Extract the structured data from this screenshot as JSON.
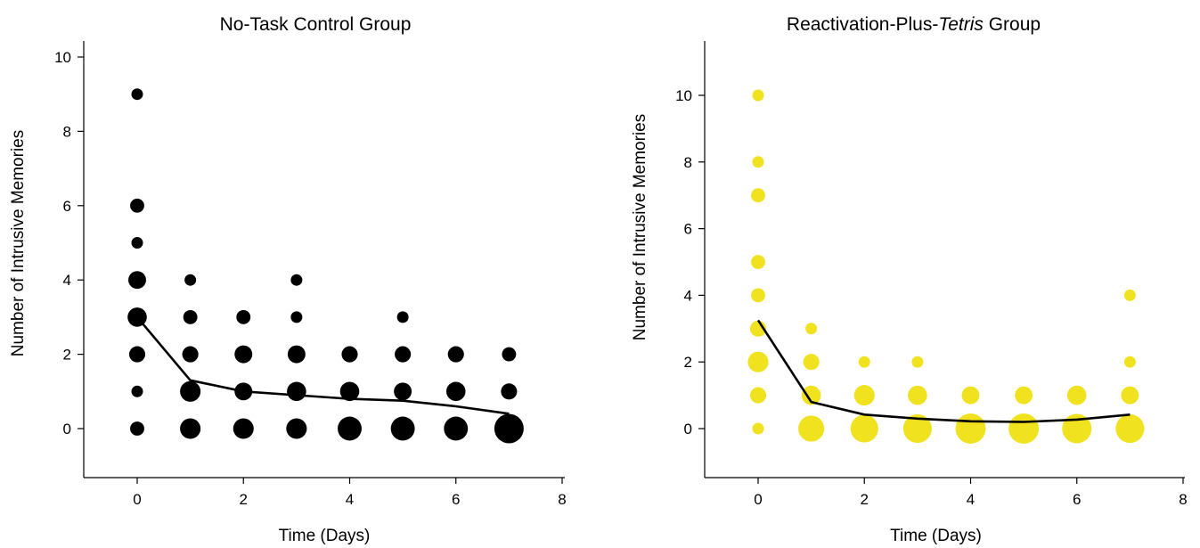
{
  "chart_data": [
    {
      "type": "scatter",
      "title": "No-Task Control Group",
      "title_parts": [
        {
          "text": "No-Task Control Group",
          "italic": false
        }
      ],
      "xlabel": "Time (Days)",
      "ylabel": "Number of Intrusive Memories",
      "xlim": [
        -1,
        8
      ],
      "ylim": [
        -1.3,
        10.4
      ],
      "xticks": [
        0,
        2,
        4,
        6,
        8
      ],
      "yticks": [
        0,
        2,
        4,
        6,
        8,
        10
      ],
      "grid": false,
      "marker_color": "#000000",
      "line_color": "#000000",
      "points": [
        {
          "x": 0,
          "y": 9,
          "size": 1
        },
        {
          "x": 0,
          "y": 6,
          "size": 2
        },
        {
          "x": 0,
          "y": 5,
          "size": 1
        },
        {
          "x": 0,
          "y": 4,
          "size": 4
        },
        {
          "x": 0,
          "y": 3,
          "size": 5
        },
        {
          "x": 0,
          "y": 2,
          "size": 3
        },
        {
          "x": 0,
          "y": 1,
          "size": 1
        },
        {
          "x": 0,
          "y": 0,
          "size": 2
        },
        {
          "x": 1,
          "y": 4,
          "size": 1
        },
        {
          "x": 1,
          "y": 3,
          "size": 2
        },
        {
          "x": 1,
          "y": 2,
          "size": 3
        },
        {
          "x": 1,
          "y": 1,
          "size": 6
        },
        {
          "x": 1,
          "y": 0,
          "size": 6
        },
        {
          "x": 2,
          "y": 3,
          "size": 2
        },
        {
          "x": 2,
          "y": 2,
          "size": 4
        },
        {
          "x": 2,
          "y": 1,
          "size": 4
        },
        {
          "x": 2,
          "y": 0,
          "size": 6
        },
        {
          "x": 3,
          "y": 4,
          "size": 1
        },
        {
          "x": 3,
          "y": 3,
          "size": 1
        },
        {
          "x": 3,
          "y": 2,
          "size": 4
        },
        {
          "x": 3,
          "y": 1,
          "size": 5
        },
        {
          "x": 3,
          "y": 0,
          "size": 6
        },
        {
          "x": 4,
          "y": 2,
          "size": 3
        },
        {
          "x": 4,
          "y": 1,
          "size": 5
        },
        {
          "x": 4,
          "y": 0,
          "size": 9
        },
        {
          "x": 5,
          "y": 3,
          "size": 1
        },
        {
          "x": 5,
          "y": 2,
          "size": 3
        },
        {
          "x": 5,
          "y": 1,
          "size": 4
        },
        {
          "x": 5,
          "y": 0,
          "size": 9
        },
        {
          "x": 6,
          "y": 2,
          "size": 3
        },
        {
          "x": 6,
          "y": 1,
          "size": 5
        },
        {
          "x": 6,
          "y": 0,
          "size": 9
        },
        {
          "x": 7,
          "y": 2,
          "size": 2
        },
        {
          "x": 7,
          "y": 1,
          "size": 3
        },
        {
          "x": 7,
          "y": 0,
          "size": 15
        }
      ],
      "mean_line": {
        "x": [
          0,
          1,
          2,
          3,
          4,
          5,
          6,
          7
        ],
        "y": [
          3.0,
          1.3,
          1.0,
          0.9,
          0.8,
          0.75,
          0.6,
          0.4
        ]
      }
    },
    {
      "type": "scatter",
      "title": "Reactivation-Plus-Tetris Group",
      "title_parts": [
        {
          "text": "Reactivation-Plus-",
          "italic": false
        },
        {
          "text": "Tetris",
          "italic": true
        },
        {
          "text": " Group",
          "italic": false
        }
      ],
      "xlabel": "Time (Days)",
      "ylabel": "Number of Intrusive Memories",
      "xlim": [
        -1,
        8
      ],
      "ylim": [
        -1.5,
        11.5
      ],
      "xticks": [
        0,
        2,
        4,
        6,
        8
      ],
      "yticks": [
        0,
        2,
        4,
        6,
        8,
        10
      ],
      "grid": false,
      "marker_color": "#f0e21f",
      "line_color": "#000000",
      "points": [
        {
          "x": 0,
          "y": 10,
          "size": 1
        },
        {
          "x": 0,
          "y": 8,
          "size": 1
        },
        {
          "x": 0,
          "y": 7,
          "size": 2
        },
        {
          "x": 0,
          "y": 5,
          "size": 2
        },
        {
          "x": 0,
          "y": 4,
          "size": 2
        },
        {
          "x": 0,
          "y": 3,
          "size": 3
        },
        {
          "x": 0,
          "y": 2,
          "size": 6
        },
        {
          "x": 0,
          "y": 1,
          "size": 3
        },
        {
          "x": 0,
          "y": 0,
          "size": 1
        },
        {
          "x": 1,
          "y": 3,
          "size": 1
        },
        {
          "x": 1,
          "y": 2,
          "size": 3
        },
        {
          "x": 1,
          "y": 1,
          "size": 5
        },
        {
          "x": 1,
          "y": 0,
          "size": 11
        },
        {
          "x": 2,
          "y": 2,
          "size": 1
        },
        {
          "x": 2,
          "y": 1,
          "size": 6
        },
        {
          "x": 2,
          "y": 0,
          "size": 13
        },
        {
          "x": 3,
          "y": 2,
          "size": 1
        },
        {
          "x": 3,
          "y": 1,
          "size": 5
        },
        {
          "x": 3,
          "y": 0,
          "size": 14
        },
        {
          "x": 4,
          "y": 1,
          "size": 4
        },
        {
          "x": 4,
          "y": 0,
          "size": 16
        },
        {
          "x": 5,
          "y": 1,
          "size": 4
        },
        {
          "x": 5,
          "y": 0,
          "size": 16
        },
        {
          "x": 6,
          "y": 1,
          "size": 5
        },
        {
          "x": 6,
          "y": 0,
          "size": 15
        },
        {
          "x": 7,
          "y": 4,
          "size": 1
        },
        {
          "x": 7,
          "y": 2,
          "size": 1
        },
        {
          "x": 7,
          "y": 1,
          "size": 4
        },
        {
          "x": 7,
          "y": 0,
          "size": 14
        }
      ],
      "mean_line": {
        "x": [
          0,
          1,
          2,
          3,
          4,
          5,
          6,
          7
        ],
        "y": [
          3.25,
          0.8,
          0.42,
          0.3,
          0.22,
          0.2,
          0.27,
          0.42
        ]
      }
    }
  ]
}
